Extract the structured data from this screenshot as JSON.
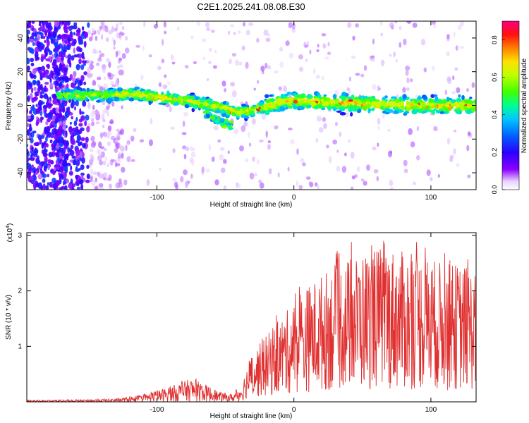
{
  "title": "C2E1.2025.241.08.08.E30",
  "chart_data": [
    {
      "type": "heatmap",
      "xlabel": "Height of straight line (km)",
      "ylabel": "Frequency (Hz)",
      "xlim": [
        -195,
        133
      ],
      "ylim": [
        -50,
        50
      ],
      "xticks": [
        -100,
        0,
        100
      ],
      "yticks": [
        -40,
        -20,
        0,
        20,
        40
      ],
      "colorbar": {
        "label": "Normalized spectral amplitude",
        "range": [
          0,
          0.9
        ],
        "ticks": [
          0.0,
          0.2,
          0.4,
          0.6,
          0.8
        ]
      },
      "ridge": {
        "x": [
          -170,
          -140,
          -120,
          -100,
          -80,
          -60,
          -40,
          -30,
          -10,
          0,
          20,
          50,
          80,
          100,
          133
        ],
        "y": [
          6,
          6,
          7,
          5,
          3,
          0,
          -4,
          -3,
          2,
          3,
          2,
          1,
          0,
          0,
          0
        ]
      },
      "branch": {
        "x": [
          -65,
          -60,
          -55,
          -50,
          -45
        ],
        "y": [
          -5,
          -7,
          -9,
          -11,
          -12
        ]
      }
    },
    {
      "type": "line",
      "xlabel": "Height of straight line (km)",
      "ylabel": "SNR (10 * v/v)",
      "y_multiplier": "(x10",
      "y_multiplier_exp": "4",
      "xlim": [
        -195,
        133
      ],
      "ylim": [
        0,
        3.05
      ],
      "xticks": [
        -100,
        0,
        100
      ],
      "yticks": [
        1,
        2,
        3
      ],
      "color": "#e03030",
      "envelope": {
        "x": [
          -195,
          -150,
          -130,
          -110,
          -90,
          -75,
          -65,
          -55,
          -45,
          -38,
          -35,
          -30,
          -20,
          -10,
          0,
          10,
          20,
          30,
          40,
          50,
          60,
          70,
          80,
          90,
          100,
          110,
          120,
          133
        ],
        "y": [
          0.03,
          0.04,
          0.06,
          0.12,
          0.28,
          0.42,
          0.32,
          0.18,
          0.14,
          0.3,
          0.6,
          0.9,
          1.2,
          1.5,
          1.8,
          2.1,
          2.3,
          2.5,
          2.6,
          2.7,
          2.8,
          2.8,
          2.7,
          2.7,
          2.6,
          2.5,
          2.5,
          2.4
        ]
      }
    }
  ]
}
